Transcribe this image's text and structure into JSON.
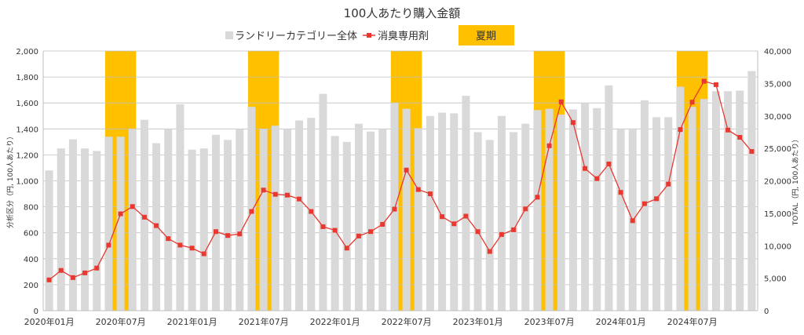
{
  "chart_data": {
    "type": "bar+line",
    "title": "100人あたり購入金額",
    "legend": {
      "placement": "top",
      "entries": [
        "ランドリーカテゴリー全体",
        "消臭専用剤",
        "夏期"
      ]
    },
    "ylabel_left": "分析区分（円, 100人あたり）",
    "ylabel_right": "TOTAL（円, 100人あたり）",
    "ylim_left": [
      0,
      2000
    ],
    "ylim_right": [
      0,
      40000
    ],
    "yticks_left": [
      "0",
      "200",
      "400",
      "600",
      "800",
      "1,000",
      "1,200",
      "1,400",
      "1,600",
      "1,800",
      "2,000"
    ],
    "yticks_right": [
      "0",
      "5,000",
      "10,000",
      "15,000",
      "20,000",
      "25,000",
      "30,000",
      "35,000",
      "40,000"
    ],
    "xtick_labels": [
      "2020年01月",
      "2020年07月",
      "2021年01月",
      "2021年07月",
      "2022年01月",
      "2022年07月",
      "2023年01月",
      "2023年07月",
      "2024年01月",
      "2024年07月"
    ],
    "grid": "horizontal",
    "colors": {
      "bar": "#d9d9d9",
      "line": "#e8382f",
      "marker": "#e8382f",
      "summer": "#ffc000",
      "grid": "#bfbfbf"
    },
    "summer_months": [
      "2020-06",
      "2020-07",
      "2020-08",
      "2021-06",
      "2021-07",
      "2021-08",
      "2022-06",
      "2022-07",
      "2022-08",
      "2023-06",
      "2023-07",
      "2023-08",
      "2024-06",
      "2024-07",
      "2024-08"
    ],
    "months_start": "2020-01",
    "months_end": "2024-12",
    "series": [
      {
        "name": "ランドリーカテゴリー全体",
        "type": "bar",
        "axis": "right",
        "values": [
          21600,
          25000,
          26400,
          25000,
          24600,
          26800,
          26800,
          28000,
          29400,
          25800,
          28000,
          31800,
          24800,
          25000,
          27100,
          26300,
          28000,
          31400,
          28000,
          28500,
          28000,
          29300,
          29700,
          33400,
          26900,
          26000,
          28800,
          27600,
          28000,
          32000,
          31100,
          28100,
          30000,
          30500,
          30400,
          33100,
          27500,
          26300,
          30000,
          27500,
          28800,
          30900,
          31100,
          30200,
          31000,
          32000,
          31200,
          34700,
          27900,
          27900,
          32400,
          29800,
          29800,
          34500,
          31400,
          32600,
          33800,
          33800,
          33900,
          36900
        ]
      },
      {
        "name": "消臭専用剤",
        "type": "line",
        "axis": "left",
        "values": [
          237,
          310,
          255,
          291,
          328,
          505,
          746,
          802,
          720,
          655,
          555,
          505,
          482,
          438,
          609,
          579,
          591,
          764,
          929,
          896,
          890,
          860,
          764,
          647,
          619,
          482,
          575,
          609,
          665,
          782,
          1083,
          933,
          900,
          724,
          669,
          728,
          609,
          456,
          587,
          623,
          784,
          874,
          1270,
          1608,
          1449,
          1095,
          1017,
          1130,
          911,
          693,
          824,
          862,
          975,
          1395,
          1606,
          1767,
          1741,
          1391,
          1335,
          1226
        ]
      }
    ]
  }
}
